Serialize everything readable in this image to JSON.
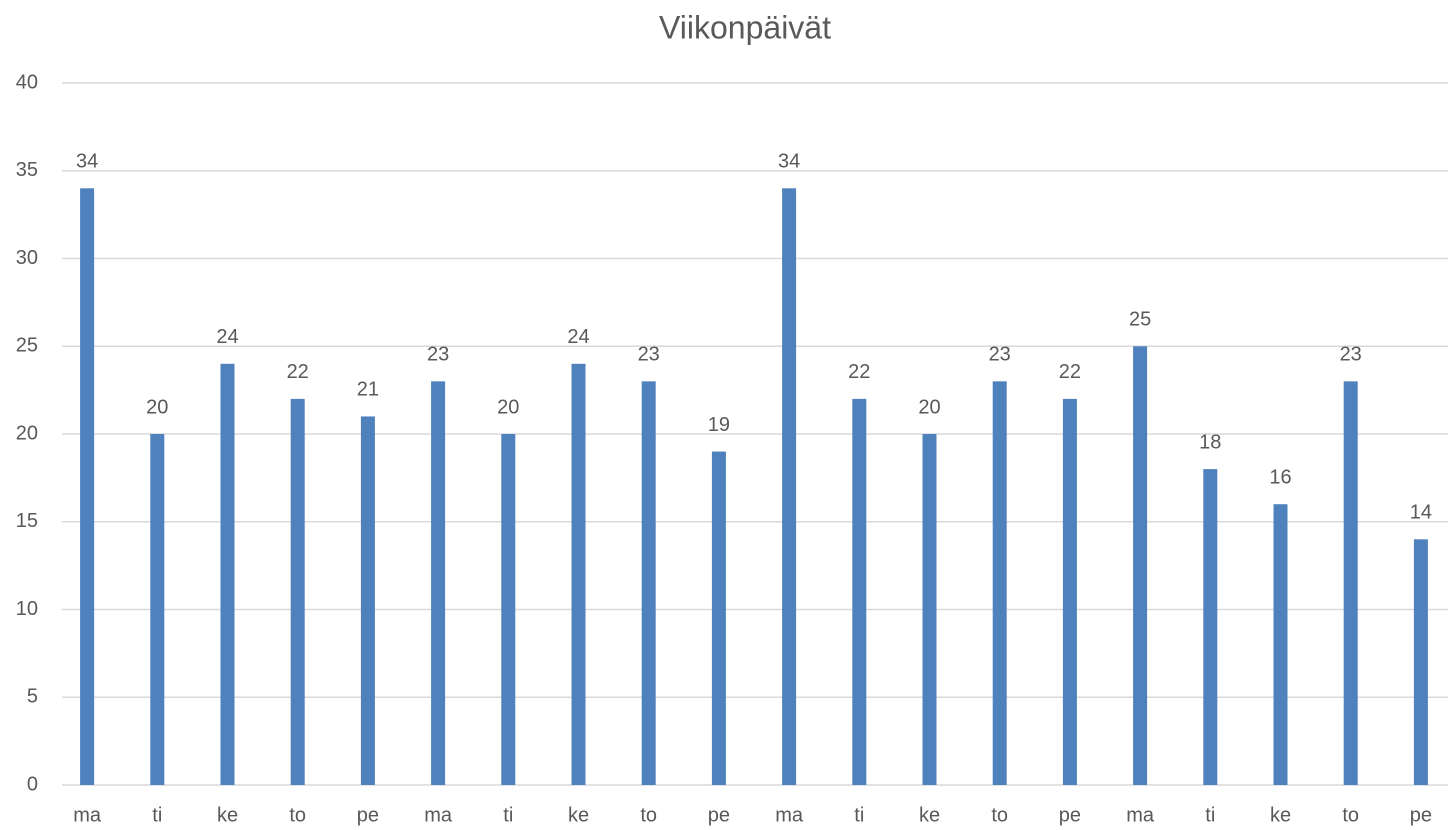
{
  "chart_data": {
    "type": "bar",
    "title": "Viikonpäivät",
    "categories": [
      "ma",
      "ti",
      "ke",
      "to",
      "pe",
      "ma",
      "ti",
      "ke",
      "to",
      "pe",
      "ma",
      "ti",
      "ke",
      "to",
      "pe",
      "ma",
      "ti",
      "ke",
      "to",
      "pe"
    ],
    "values": [
      34,
      20,
      24,
      22,
      21,
      23,
      20,
      24,
      23,
      19,
      34,
      22,
      20,
      23,
      22,
      25,
      18,
      16,
      23,
      14
    ],
    "color": "#4f81bd",
    "ylim": [
      0,
      40
    ],
    "yticks": [
      0,
      5,
      10,
      15,
      20,
      25,
      30,
      35,
      40
    ],
    "grid": true
  }
}
